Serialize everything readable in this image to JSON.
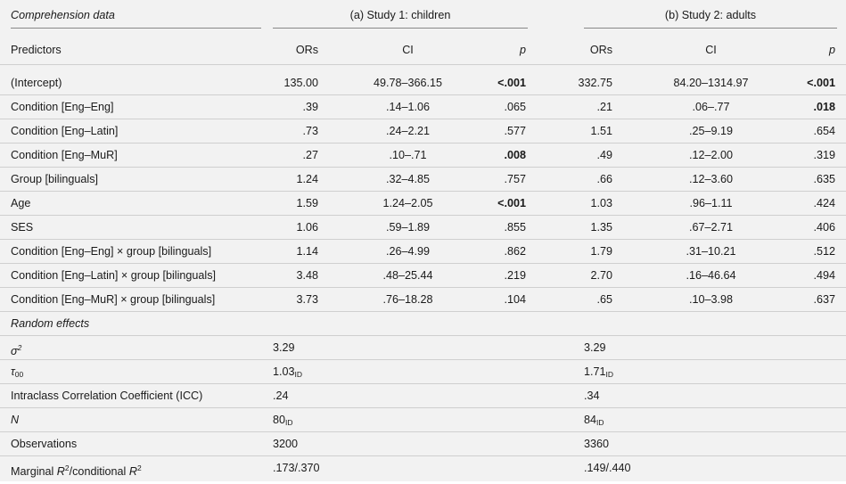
{
  "header": {
    "table_label": "Comprehension data",
    "study1": "(a) Study 1: children",
    "study2": "(b) Study 2: adults",
    "predictors": "Predictors",
    "ors1": "ORs",
    "ci1": "CI",
    "p1": "p",
    "ors2": "ORs",
    "ci2": "CI",
    "p2": "p"
  },
  "rows": [
    {
      "label": "(Intercept)",
      "or1": "135.00",
      "ci1": "49.78–366.15",
      "p1": "<.001",
      "or2": "332.75",
      "ci2": "84.20–1314.97",
      "p2": "<.001"
    },
    {
      "label": "Condition [Eng–Eng]",
      "or1": ".39",
      "ci1": ".14–1.06",
      "p1": ".065",
      "or2": ".21",
      "ci2": ".06–.77",
      "p2": ".018"
    },
    {
      "label": "Condition [Eng–Latin]",
      "or1": ".73",
      "ci1": ".24–2.21",
      "p1": ".577",
      "or2": "1.51",
      "ci2": ".25–9.19",
      "p2": ".654"
    },
    {
      "label": "Condition [Eng–MuR]",
      "or1": ".27",
      "ci1": ".10–.71",
      "p1": ".008",
      "or2": ".49",
      "ci2": ".12–2.00",
      "p2": ".319"
    },
    {
      "label": "Group [bilinguals]",
      "or1": "1.24",
      "ci1": ".32–4.85",
      "p1": ".757",
      "or2": ".66",
      "ci2": ".12–3.60",
      "p2": ".635"
    },
    {
      "label": "Age",
      "or1": "1.59",
      "ci1": "1.24–2.05",
      "p1": "<.001",
      "or2": "1.03",
      "ci2": ".96–1.11",
      "p2": ".424"
    },
    {
      "label": "SES",
      "or1": "1.06",
      "ci1": ".59–1.89",
      "p1": ".855",
      "or2": "1.35",
      "ci2": ".67–2.71",
      "p2": ".406"
    },
    {
      "label": "Condition [Eng–Eng] × group [bilinguals]",
      "or1": "1.14",
      "ci1": ".26–4.99",
      "p1": ".862",
      "or2": "1.79",
      "ci2": ".31–10.21",
      "p2": ".512"
    },
    {
      "label": "Condition [Eng–Latin] × group [bilinguals]",
      "or1": "3.48",
      "ci1": ".48–25.44",
      "p1": ".219",
      "or2": "2.70",
      "ci2": ".16–46.64",
      "p2": ".494"
    },
    {
      "label": "Condition [Eng–MuR] × group [bilinguals]",
      "or1": "3.73",
      "ci1": ".76–18.28",
      "p1": ".104",
      "or2": ".65",
      "ci2": ".10–3.98",
      "p2": ".637"
    }
  ],
  "random": {
    "title": "Random effects",
    "sigma_label": "σ",
    "sigma_sup": "2",
    "sigma1": "3.29",
    "sigma2": "3.29",
    "tau_label": "τ",
    "tau_sub": "00",
    "tau1": "1.03",
    "tau1_sub": "ID",
    "tau2": "1.71",
    "tau2_sub": "ID",
    "icc_label": "Intraclass Correlation Coefficient (ICC)",
    "icc1": ".24",
    "icc2": ".34",
    "n_label": "N",
    "n1": "80",
    "n1_sub": "ID",
    "n2": "84",
    "n2_sub": "ID",
    "obs_label": "Observations",
    "obs1": "3200",
    "obs2": "3360",
    "r2_a": "Marginal ",
    "r2_R": "R",
    "r2_sup": "2",
    "r2_b": "/conditional ",
    "r2_R2": "R",
    "r2_sup2": "2",
    "r2_1": ".173/.370",
    "r2_2": ".149/.440"
  }
}
